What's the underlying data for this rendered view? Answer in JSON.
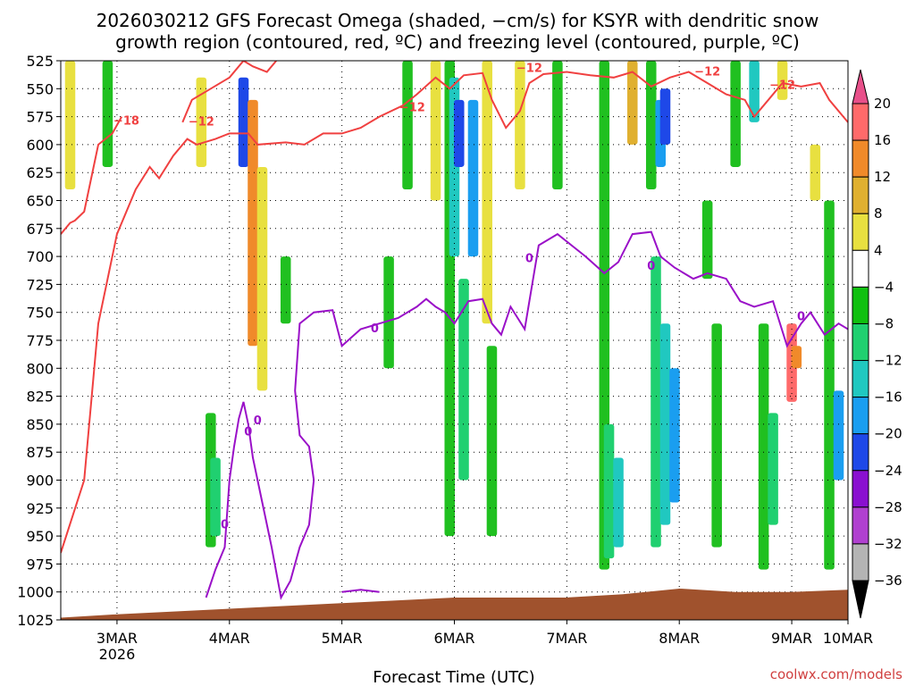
{
  "chart_data": {
    "type": "heatmap",
    "title_line1": "2026030212 GFS Forecast Omega (shaded, −cm/s) for KSYR with dendritic snow",
    "title_line2": "growth region (contoured, red, ºC) and freezing level (contoured, purple, ºC)",
    "xlabel": "Forecast Time (UTC)",
    "credit": "coolwx.com/models",
    "x_time_range_hours_from_init": [
      12,
      180
    ],
    "x_ticks": [
      {
        "label": "3MAR",
        "hour": 24,
        "sublabel": "2026"
      },
      {
        "label": "4MAR",
        "hour": 48,
        "sublabel": ""
      },
      {
        "label": "5MAR",
        "hour": 72,
        "sublabel": ""
      },
      {
        "label": "6MAR",
        "hour": 96,
        "sublabel": ""
      },
      {
        "label": "7MAR",
        "hour": 120,
        "sublabel": ""
      },
      {
        "label": "8MAR",
        "hour": 144,
        "sublabel": ""
      },
      {
        "label": "9MAR",
        "hour": 168,
        "sublabel": ""
      },
      {
        "label": "10MAR",
        "hour": 180,
        "sublabel": ""
      }
    ],
    "y_levels_hPa": [
      "525",
      "550",
      "575",
      "600",
      "625",
      "650",
      "675",
      "700",
      "725",
      "750",
      "775",
      "800",
      "825",
      "850",
      "875",
      "900",
      "925",
      "950",
      "975",
      "1000",
      "1025"
    ],
    "y_range_hPa": [
      1025,
      525
    ],
    "colorbar": {
      "labels": [
        "20",
        "16",
        "12",
        "8",
        "4",
        "−4",
        "−8",
        "−12",
        "−16",
        "−20",
        "−24",
        "−28",
        "−32",
        "−36"
      ],
      "colors": [
        "#ff6a6a",
        "#f08a2a",
        "#e0b030",
        "#e8e040",
        "#ffffff",
        "#10c010",
        "#20d070",
        "#20c8c0",
        "#1a9ef0",
        "#1e48e8",
        "#8a10d0",
        "#b040d0",
        "#b4b4b4",
        "#000000"
      ],
      "top_cap_color": "#e8508a",
      "bottom_cap_color": "#000000"
    },
    "shading_blobs": [
      {
        "t": 14,
        "p0": 525,
        "p1": 640,
        "c": "#e8e040"
      },
      {
        "t": 22,
        "p0": 525,
        "p1": 620,
        "c": "#20c020"
      },
      {
        "t": 42,
        "p0": 540,
        "p1": 620,
        "c": "#e8e040"
      },
      {
        "t": 44,
        "p0": 840,
        "p1": 960,
        "c": "#20c020"
      },
      {
        "t": 45,
        "p0": 880,
        "p1": 950,
        "c": "#20d070"
      },
      {
        "t": 51,
        "p0": 540,
        "p1": 620,
        "c": "#1e48e8"
      },
      {
        "t": 53,
        "p0": 560,
        "p1": 780,
        "c": "#f08a2a"
      },
      {
        "t": 55,
        "p0": 620,
        "p1": 820,
        "c": "#e8e040"
      },
      {
        "t": 60,
        "p0": 700,
        "p1": 760,
        "c": "#20c020"
      },
      {
        "t": 82,
        "p0": 700,
        "p1": 800,
        "c": "#20c020"
      },
      {
        "t": 86,
        "p0": 525,
        "p1": 640,
        "c": "#20c020"
      },
      {
        "t": 92,
        "p0": 525,
        "p1": 650,
        "c": "#e8e040"
      },
      {
        "t": 95,
        "p0": 525,
        "p1": 950,
        "c": "#20c020"
      },
      {
        "t": 96,
        "p0": 540,
        "p1": 700,
        "c": "#20c8c0"
      },
      {
        "t": 97,
        "p0": 560,
        "p1": 620,
        "c": "#1e48e8"
      },
      {
        "t": 98,
        "p0": 720,
        "p1": 900,
        "c": "#20d070"
      },
      {
        "t": 100,
        "p0": 560,
        "p1": 700,
        "c": "#1a9ef0"
      },
      {
        "t": 103,
        "p0": 525,
        "p1": 760,
        "c": "#e8e040"
      },
      {
        "t": 104,
        "p0": 780,
        "p1": 950,
        "c": "#20c020"
      },
      {
        "t": 110,
        "p0": 525,
        "p1": 640,
        "c": "#e8e040"
      },
      {
        "t": 118,
        "p0": 525,
        "p1": 640,
        "c": "#20c020"
      },
      {
        "t": 128,
        "p0": 525,
        "p1": 980,
        "c": "#20c020"
      },
      {
        "t": 129,
        "p0": 850,
        "p1": 970,
        "c": "#20d070"
      },
      {
        "t": 131,
        "p0": 880,
        "p1": 960,
        "c": "#20c8c0"
      },
      {
        "t": 134,
        "p0": 525,
        "p1": 600,
        "c": "#e0b030"
      },
      {
        "t": 138,
        "p0": 525,
        "p1": 640,
        "c": "#20c020"
      },
      {
        "t": 140,
        "p0": 560,
        "p1": 620,
        "c": "#1a9ef0"
      },
      {
        "t": 141,
        "p0": 550,
        "p1": 600,
        "c": "#1e48e8"
      },
      {
        "t": 139,
        "p0": 700,
        "p1": 960,
        "c": "#20d070"
      },
      {
        "t": 141,
        "p0": 760,
        "p1": 940,
        "c": "#20c8c0"
      },
      {
        "t": 143,
        "p0": 800,
        "p1": 920,
        "c": "#1a9ef0"
      },
      {
        "t": 150,
        "p0": 650,
        "p1": 720,
        "c": "#20c020"
      },
      {
        "t": 152,
        "p0": 760,
        "p1": 960,
        "c": "#20c020"
      },
      {
        "t": 156,
        "p0": 525,
        "p1": 620,
        "c": "#20c020"
      },
      {
        "t": 160,
        "p0": 525,
        "p1": 580,
        "c": "#20c8c0"
      },
      {
        "t": 162,
        "p0": 760,
        "p1": 980,
        "c": "#20c020"
      },
      {
        "t": 164,
        "p0": 840,
        "p1": 940,
        "c": "#20d070"
      },
      {
        "t": 166,
        "p0": 525,
        "p1": 560,
        "c": "#e8e040"
      },
      {
        "t": 168,
        "p0": 760,
        "p1": 830,
        "c": "#ff6a6a"
      },
      {
        "t": 169,
        "p0": 780,
        "p1": 800,
        "c": "#f08a2a"
      },
      {
        "t": 173,
        "p0": 600,
        "p1": 650,
        "c": "#e8e040"
      },
      {
        "t": 176,
        "p0": 650,
        "p1": 980,
        "c": "#20c020"
      },
      {
        "t": 178,
        "p0": 820,
        "p1": 900,
        "c": "#1a9ef0"
      }
    ],
    "isotherm_m18": {
      "label": "−18",
      "points": [
        [
          12,
          680
        ],
        [
          14,
          670
        ],
        [
          15,
          668
        ],
        [
          17,
          660
        ],
        [
          20,
          600
        ],
        [
          23,
          590
        ],
        [
          25,
          575
        ]
      ]
    },
    "isotherm_m12_lower": {
      "label": "−12",
      "points": [
        [
          12,
          965
        ],
        [
          17,
          900
        ],
        [
          20,
          760
        ],
        [
          24,
          680
        ],
        [
          28,
          640
        ],
        [
          31,
          620
        ],
        [
          33,
          630
        ],
        [
          36,
          610
        ],
        [
          39,
          595
        ],
        [
          41,
          600
        ],
        [
          45,
          595
        ],
        [
          48,
          590
        ],
        [
          52,
          590
        ],
        [
          54,
          600
        ],
        [
          60,
          598
        ],
        [
          64,
          600
        ],
        [
          68,
          590
        ],
        [
          72,
          590
        ],
        [
          76,
          585
        ],
        [
          80,
          575
        ],
        [
          85,
          565
        ],
        [
          88,
          555
        ],
        [
          92,
          540
        ],
        [
          95,
          550
        ],
        [
          98,
          538
        ],
        [
          102,
          536
        ],
        [
          104,
          560
        ],
        [
          107,
          585
        ],
        [
          110,
          570
        ],
        [
          112,
          545
        ],
        [
          115,
          537
        ],
        [
          120,
          535
        ],
        [
          125,
          538
        ],
        [
          130,
          540
        ],
        [
          134,
          535
        ],
        [
          138,
          548
        ],
        [
          142,
          540
        ],
        [
          146,
          535
        ],
        [
          150,
          545
        ],
        [
          154,
          555
        ],
        [
          158,
          560
        ],
        [
          160,
          575
        ],
        [
          163,
          560
        ],
        [
          166,
          545
        ],
        [
          170,
          548
        ],
        [
          174,
          545
        ],
        [
          176,
          560
        ],
        [
          180,
          580
        ]
      ]
    },
    "isotherm_m12_upper": {
      "label": "−12",
      "points": [
        [
          38,
          580
        ],
        [
          40,
          560
        ],
        [
          44,
          550
        ],
        [
          48,
          540
        ],
        [
          51,
          525
        ]
      ]
    },
    "isotherm_m12_peak": {
      "points": [
        [
          51,
          525
        ],
        [
          53,
          530
        ],
        [
          56,
          535
        ],
        [
          58,
          525
        ]
      ]
    },
    "freezing_level": {
      "label": "0",
      "points": [
        [
          43,
          1005
        ],
        [
          45,
          980
        ],
        [
          47,
          960
        ],
        [
          48,
          900
        ],
        [
          49,
          870
        ],
        [
          50,
          845
        ],
        [
          51,
          830
        ],
        [
          52,
          850
        ],
        [
          53,
          880
        ],
        [
          55,
          920
        ],
        [
          57,
          960
        ],
        [
          59,
          1005
        ],
        [
          61,
          990
        ],
        [
          63,
          960
        ],
        [
          65,
          940
        ],
        [
          66,
          900
        ],
        [
          65,
          870
        ],
        [
          63,
          860
        ],
        [
          62,
          820
        ],
        [
          63,
          760
        ],
        [
          66,
          750
        ],
        [
          70,
          748
        ],
        [
          72,
          780
        ],
        [
          76,
          765
        ],
        [
          80,
          760
        ],
        [
          84,
          755
        ],
        [
          88,
          745
        ],
        [
          90,
          738
        ],
        [
          92,
          745
        ],
        [
          94,
          750
        ],
        [
          96,
          760
        ],
        [
          99,
          740
        ],
        [
          102,
          738
        ],
        [
          104,
          760
        ],
        [
          106,
          770
        ],
        [
          108,
          745
        ],
        [
          111,
          765
        ],
        [
          114,
          690
        ],
        [
          118,
          680
        ],
        [
          121,
          690
        ],
        [
          124,
          700
        ],
        [
          128,
          715
        ],
        [
          131,
          705
        ],
        [
          134,
          680
        ],
        [
          138,
          678
        ],
        [
          140,
          700
        ],
        [
          143,
          710
        ],
        [
          147,
          720
        ],
        [
          150,
          715
        ],
        [
          154,
          720
        ],
        [
          157,
          740
        ],
        [
          160,
          745
        ],
        [
          164,
          740
        ],
        [
          167,
          780
        ],
        [
          170,
          760
        ],
        [
          172,
          750
        ],
        [
          175,
          770
        ],
        [
          178,
          760
        ],
        [
          180,
          765
        ]
      ]
    },
    "freezing_level_bottom": {
      "points": [
        [
          72,
          1000
        ],
        [
          76,
          998
        ],
        [
          80,
          1000
        ]
      ]
    },
    "terrain": {
      "color": "#a0522d",
      "points": [
        [
          12,
          1023
        ],
        [
          24,
          1020
        ],
        [
          48,
          1015
        ],
        [
          72,
          1010
        ],
        [
          96,
          1005
        ],
        [
          120,
          1005
        ],
        [
          132,
          1002
        ],
        [
          144,
          997
        ],
        [
          156,
          1000
        ],
        [
          168,
          1000
        ],
        [
          180,
          998
        ]
      ]
    }
  }
}
